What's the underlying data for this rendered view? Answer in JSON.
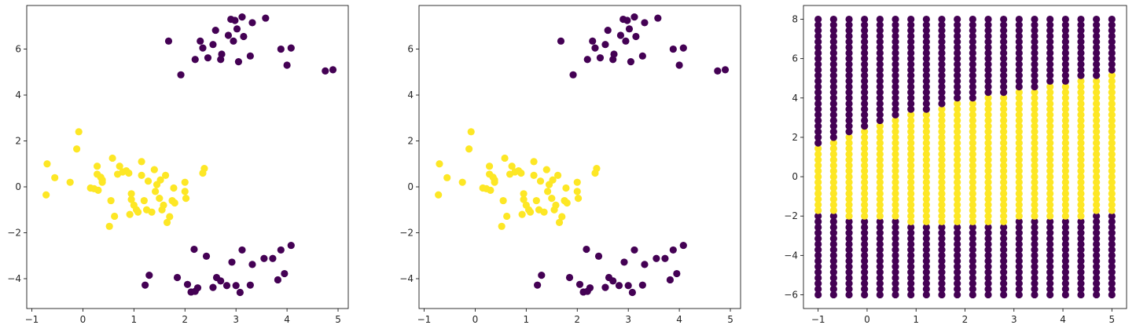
{
  "chart_data": [
    {
      "type": "scatter",
      "xlim": [
        -1.1,
        5.2
      ],
      "ylim": [
        -5.3,
        7.9
      ],
      "xticks": [
        -1,
        0,
        1,
        2,
        3,
        4,
        5
      ],
      "yticks": [
        -4,
        -2,
        0,
        2,
        4,
        6
      ],
      "tick_labels_x": [
        "−1",
        "0",
        "1",
        "2",
        "3",
        "4",
        "5"
      ],
      "tick_labels_y": [
        "−4",
        "−2",
        "0",
        "2",
        "4",
        "6"
      ],
      "grid": false,
      "series": [
        {
          "color": "#fde725",
          "points": [
            [
              -0.72,
              -0.35
            ],
            [
              -0.7,
              1.0
            ],
            [
              -0.55,
              0.4
            ],
            [
              -0.25,
              0.2
            ],
            [
              -0.12,
              1.65
            ],
            [
              -0.08,
              2.4
            ],
            [
              0.15,
              -0.05
            ],
            [
              0.22,
              -0.08
            ],
            [
              0.28,
              0.55
            ],
            [
              0.28,
              0.9
            ],
            [
              0.3,
              -0.15
            ],
            [
              0.35,
              0.42
            ],
            [
              0.38,
              0.3
            ],
            [
              0.38,
              0.2
            ],
            [
              0.52,
              -1.72
            ],
            [
              0.55,
              -0.6
            ],
            [
              0.58,
              1.25
            ],
            [
              0.62,
              -1.28
            ],
            [
              0.68,
              0.55
            ],
            [
              0.72,
              0.9
            ],
            [
              0.78,
              0.65
            ],
            [
              0.85,
              0.7
            ],
            [
              0.9,
              0.6
            ],
            [
              0.92,
              -1.2
            ],
            [
              0.95,
              -0.3
            ],
            [
              0.95,
              -0.55
            ],
            [
              1.0,
              -0.8
            ],
            [
              1.05,
              -1.0
            ],
            [
              1.08,
              -1.1
            ],
            [
              1.15,
              1.1
            ],
            [
              1.15,
              0.5
            ],
            [
              1.2,
              -0.6
            ],
            [
              1.25,
              -1.0
            ],
            [
              1.28,
              0.25
            ],
            [
              1.35,
              -1.1
            ],
            [
              1.4,
              0.75
            ],
            [
              1.42,
              -0.2
            ],
            [
              1.45,
              0.1
            ],
            [
              1.5,
              -0.5
            ],
            [
              1.52,
              0.3
            ],
            [
              1.55,
              -1.0
            ],
            [
              1.58,
              -0.8
            ],
            [
              1.62,
              0.5
            ],
            [
              1.65,
              -1.55
            ],
            [
              1.7,
              -1.3
            ],
            [
              1.75,
              -0.6
            ],
            [
              1.78,
              -0.05
            ],
            [
              1.8,
              -0.7
            ],
            [
              2.0,
              -0.2
            ],
            [
              2.0,
              0.2
            ],
            [
              2.02,
              -0.5
            ],
            [
              2.35,
              0.6
            ],
            [
              2.38,
              0.8
            ]
          ]
        },
        {
          "color": "#440154",
          "points": [
            [
              1.68,
              6.35
            ],
            [
              1.92,
              4.88
            ],
            [
              2.2,
              5.55
            ],
            [
              2.3,
              6.35
            ],
            [
              2.35,
              6.05
            ],
            [
              2.45,
              5.62
            ],
            [
              2.55,
              6.2
            ],
            [
              2.6,
              6.82
            ],
            [
              2.7,
              5.55
            ],
            [
              2.72,
              5.78
            ],
            [
              2.85,
              6.6
            ],
            [
              2.9,
              7.3
            ],
            [
              2.95,
              6.35
            ],
            [
              2.98,
              7.25
            ],
            [
              3.02,
              6.88
            ],
            [
              3.05,
              5.45
            ],
            [
              3.12,
              7.4
            ],
            [
              3.15,
              6.55
            ],
            [
              3.28,
              5.7
            ],
            [
              3.32,
              7.15
            ],
            [
              3.58,
              7.35
            ],
            [
              3.88,
              6.0
            ],
            [
              4.0,
              5.3
            ],
            [
              4.08,
              6.05
            ],
            [
              4.75,
              5.05
            ],
            [
              4.9,
              5.1
            ],
            [
              1.22,
              -4.28
            ],
            [
              1.3,
              -3.85
            ],
            [
              1.85,
              -3.95
            ],
            [
              2.05,
              -4.25
            ],
            [
              2.12,
              -4.58
            ],
            [
              2.18,
              -2.72
            ],
            [
              2.2,
              -4.55
            ],
            [
              2.25,
              -4.4
            ],
            [
              2.42,
              -3.02
            ],
            [
              2.55,
              -4.38
            ],
            [
              2.62,
              -3.95
            ],
            [
              2.7,
              -4.1
            ],
            [
              2.82,
              -4.3
            ],
            [
              2.92,
              -3.28
            ],
            [
              3.0,
              -4.3
            ],
            [
              3.08,
              -4.6
            ],
            [
              3.12,
              -2.75
            ],
            [
              3.28,
              -4.28
            ],
            [
              3.32,
              -3.38
            ],
            [
              3.55,
              -3.12
            ],
            [
              3.72,
              -3.12
            ],
            [
              3.82,
              -4.05
            ],
            [
              3.88,
              -2.75
            ],
            [
              3.95,
              -3.78
            ],
            [
              4.08,
              -2.55
            ]
          ]
        }
      ]
    },
    {
      "type": "scatter",
      "xlim": [
        -1.1,
        5.2
      ],
      "ylim": [
        -5.3,
        7.9
      ],
      "xticks": [
        -1,
        0,
        1,
        2,
        3,
        4,
        5
      ],
      "yticks": [
        -4,
        -2,
        0,
        2,
        4,
        6
      ],
      "tick_labels_x": [
        "−1",
        "0",
        "1",
        "2",
        "3",
        "4",
        "5"
      ],
      "tick_labels_y": [
        "−4",
        "−2",
        "0",
        "2",
        "4",
        "6"
      ],
      "grid": false,
      "series": [
        {
          "color": "#fde725",
          "points": [
            [
              -0.72,
              -0.35
            ],
            [
              -0.7,
              1.0
            ],
            [
              -0.55,
              0.4
            ],
            [
              -0.25,
              0.2
            ],
            [
              -0.12,
              1.65
            ],
            [
              -0.08,
              2.4
            ],
            [
              0.15,
              -0.05
            ],
            [
              0.22,
              -0.08
            ],
            [
              0.28,
              0.55
            ],
            [
              0.28,
              0.9
            ],
            [
              0.3,
              -0.15
            ],
            [
              0.35,
              0.42
            ],
            [
              0.38,
              0.3
            ],
            [
              0.38,
              0.2
            ],
            [
              0.52,
              -1.72
            ],
            [
              0.55,
              -0.6
            ],
            [
              0.58,
              1.25
            ],
            [
              0.62,
              -1.28
            ],
            [
              0.68,
              0.55
            ],
            [
              0.72,
              0.9
            ],
            [
              0.78,
              0.65
            ],
            [
              0.85,
              0.7
            ],
            [
              0.9,
              0.6
            ],
            [
              0.92,
              -1.2
            ],
            [
              0.95,
              -0.3
            ],
            [
              0.95,
              -0.55
            ],
            [
              1.0,
              -0.8
            ],
            [
              1.05,
              -1.0
            ],
            [
              1.08,
              -1.1
            ],
            [
              1.15,
              1.1
            ],
            [
              1.15,
              0.5
            ],
            [
              1.2,
              -0.6
            ],
            [
              1.25,
              -1.0
            ],
            [
              1.28,
              0.25
            ],
            [
              1.35,
              -1.1
            ],
            [
              1.4,
              0.75
            ],
            [
              1.42,
              -0.2
            ],
            [
              1.45,
              0.1
            ],
            [
              1.5,
              -0.5
            ],
            [
              1.52,
              0.3
            ],
            [
              1.55,
              -1.0
            ],
            [
              1.58,
              -0.8
            ],
            [
              1.62,
              0.5
            ],
            [
              1.65,
              -1.55
            ],
            [
              1.7,
              -1.3
            ],
            [
              1.75,
              -0.6
            ],
            [
              1.78,
              -0.05
            ],
            [
              1.8,
              -0.7
            ],
            [
              2.0,
              -0.2
            ],
            [
              2.0,
              0.2
            ],
            [
              2.02,
              -0.5
            ],
            [
              2.35,
              0.6
            ],
            [
              2.38,
              0.8
            ]
          ]
        },
        {
          "color": "#440154",
          "points": [
            [
              1.68,
              6.35
            ],
            [
              1.92,
              4.88
            ],
            [
              2.2,
              5.55
            ],
            [
              2.3,
              6.35
            ],
            [
              2.35,
              6.05
            ],
            [
              2.45,
              5.62
            ],
            [
              2.55,
              6.2
            ],
            [
              2.6,
              6.82
            ],
            [
              2.7,
              5.55
            ],
            [
              2.72,
              5.78
            ],
            [
              2.85,
              6.6
            ],
            [
              2.9,
              7.3
            ],
            [
              2.95,
              6.35
            ],
            [
              2.98,
              7.25
            ],
            [
              3.02,
              6.88
            ],
            [
              3.05,
              5.45
            ],
            [
              3.12,
              7.4
            ],
            [
              3.15,
              6.55
            ],
            [
              3.28,
              5.7
            ],
            [
              3.32,
              7.15
            ],
            [
              3.58,
              7.35
            ],
            [
              3.88,
              6.0
            ],
            [
              4.0,
              5.3
            ],
            [
              4.08,
              6.05
            ],
            [
              4.75,
              5.05
            ],
            [
              4.9,
              5.1
            ],
            [
              1.22,
              -4.28
            ],
            [
              1.3,
              -3.85
            ],
            [
              1.85,
              -3.95
            ],
            [
              2.05,
              -4.25
            ],
            [
              2.12,
              -4.58
            ],
            [
              2.18,
              -2.72
            ],
            [
              2.2,
              -4.55
            ],
            [
              2.25,
              -4.4
            ],
            [
              2.42,
              -3.02
            ],
            [
              2.55,
              -4.38
            ],
            [
              2.62,
              -3.95
            ],
            [
              2.7,
              -4.1
            ],
            [
              2.82,
              -4.3
            ],
            [
              2.92,
              -3.28
            ],
            [
              3.0,
              -4.3
            ],
            [
              3.08,
              -4.6
            ],
            [
              3.12,
              -2.75
            ],
            [
              3.28,
              -4.28
            ],
            [
              3.32,
              -3.38
            ],
            [
              3.55,
              -3.12
            ],
            [
              3.72,
              -3.12
            ],
            [
              3.82,
              -4.05
            ],
            [
              3.88,
              -2.75
            ],
            [
              3.95,
              -3.78
            ],
            [
              4.08,
              -2.55
            ]
          ]
        }
      ]
    },
    {
      "type": "scatter",
      "xlim": [
        -1.3,
        5.3
      ],
      "ylim": [
        -6.7,
        8.7
      ],
      "xticks": [
        -1,
        0,
        1,
        2,
        3,
        4,
        5
      ],
      "yticks": [
        -6,
        -4,
        -2,
        0,
        2,
        4,
        6,
        8
      ],
      "tick_labels_x": [
        "−1",
        "0",
        "1",
        "2",
        "3",
        "4",
        "5"
      ],
      "tick_labels_y": [
        "−6",
        "−4",
        "−2",
        "0",
        "2",
        "4",
        "6",
        "8"
      ],
      "grid": false,
      "grid_points": {
        "x": [
          -1.0,
          -0.684,
          -0.368,
          -0.053,
          0.263,
          0.579,
          0.895,
          1.211,
          1.526,
          1.842,
          2.158,
          2.474,
          2.789,
          3.105,
          3.421,
          3.737,
          4.053,
          4.368,
          4.684,
          5.0
        ],
        "y_min": -6.0,
        "y_max": 8.0,
        "y_count": 50,
        "inside_color": "#fde725",
        "outside_color": "#440154",
        "inside_bottom": [
          -1.8,
          -1.8,
          -2.1,
          -2.1,
          -2.1,
          -2.1,
          -2.4,
          -2.4,
          -2.4,
          -2.4,
          -2.4,
          -2.4,
          -2.4,
          -2.1,
          -2.1,
          -2.1,
          -2.1,
          -2.1,
          -1.8,
          -1.8
        ],
        "inside_top": [
          1.45,
          1.75,
          2.05,
          2.35,
          2.65,
          2.9,
          3.2,
          3.2,
          3.5,
          3.8,
          3.8,
          4.05,
          4.05,
          4.35,
          4.35,
          4.65,
          4.65,
          4.9,
          4.9,
          5.2
        ]
      }
    }
  ]
}
